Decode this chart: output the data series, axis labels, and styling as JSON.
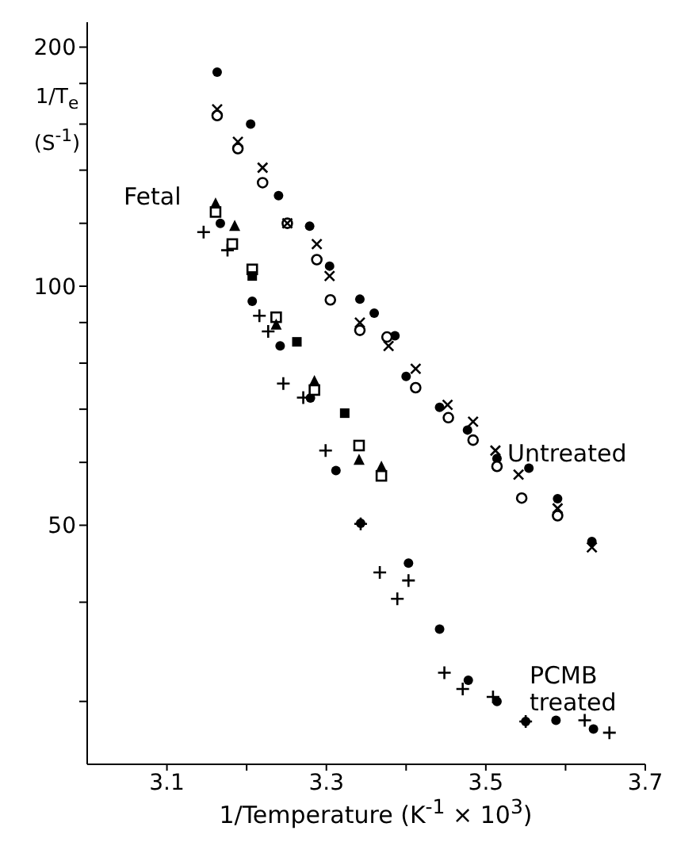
{
  "chart_data": {
    "type": "scatter",
    "xlabel": "1/Temperature (K$^{-1}$ × 10$^{3}$)",
    "ylabel": "1/T$_{e}$ (S$^{-1}$)",
    "log": "y",
    "xlim": [
      3.0,
      3.7
    ],
    "xticks": [
      3.1,
      {
        "value": 3.2,
        "label": null
      },
      3.3,
      {
        "value": 3.4,
        "label": null
      },
      3.5,
      {
        "value": 3.6,
        "label": null
      },
      3.7
    ],
    "ylim": [
      25,
      215
    ],
    "yticks": [
      {
        "value": 30,
        "label": null
      },
      {
        "value": 40,
        "label": null
      },
      50,
      {
        "value": 60,
        "label": null
      },
      {
        "value": 70,
        "label": null
      },
      {
        "value": 80,
        "label": null
      },
      {
        "value": 90,
        "label": null
      },
      100,
      {
        "value": 120,
        "label": null
      },
      {
        "value": 140,
        "label": null
      },
      {
        "value": 160,
        "label": null
      },
      {
        "value": 180,
        "label": null
      },
      200
    ],
    "annotations": [
      "Fetal",
      "Untreated",
      "PCMB treated"
    ],
    "series": [
      {
        "color": "#000000",
        "marker": "circle",
        "x": [
          3.163,
          3.205,
          3.24,
          3.167,
          3.279,
          3.304,
          3.207,
          3.342,
          3.36,
          3.386,
          3.4,
          3.442,
          3.477,
          3.514,
          3.554,
          3.59,
          3.633,
          3.242,
          3.28,
          3.312,
          3.343,
          3.403,
          3.442,
          3.478,
          3.514,
          3.55,
          3.588,
          3.635
        ],
        "values": [
          186,
          160,
          130,
          120,
          119,
          106,
          95.7,
          96.3,
          92.5,
          86.6,
          77,
          70.4,
          65.9,
          60.7,
          59,
          54,
          47.7,
          84.1,
          72.3,
          58.6,
          50.3,
          44.8,
          37,
          31.9,
          30,
          28.3,
          28.4,
          27.7
        ]
      },
      {
        "color": "#000000",
        "marker": "circle-open",
        "x": [
          3.163,
          3.189,
          3.22,
          3.251,
          3.288,
          3.305,
          3.342,
          3.376,
          3.412,
          3.453,
          3.484,
          3.514,
          3.545,
          3.59
        ],
        "values": [
          164,
          149,
          135,
          120,
          108,
          96.1,
          88,
          86.3,
          74.5,
          68.3,
          64,
          59.3,
          54.1,
          51.4
        ]
      },
      {
        "color": "#000000",
        "marker": "cross",
        "x": [
          3.163,
          3.189,
          3.22,
          3.251,
          3.288,
          3.304,
          3.342,
          3.378,
          3.412,
          3.452,
          3.484,
          3.512,
          3.541,
          3.59,
          3.633
        ],
        "values": [
          167,
          152,
          141,
          120,
          113,
          103,
          90,
          84.1,
          78.7,
          70.9,
          67.5,
          62.1,
          57.9,
          52.5,
          46.9
        ]
      },
      {
        "color": "#000000",
        "marker": "plus",
        "x": [
          3.146,
          3.176,
          3.216,
          3.227,
          3.246,
          3.271,
          3.299,
          3.343,
          3.367,
          3.403,
          3.389,
          3.448,
          3.471,
          3.509,
          3.55,
          3.624,
          3.655
        ],
        "values": [
          117,
          111,
          91.8,
          87.7,
          75.4,
          72.4,
          62.1,
          50.2,
          43.6,
          42.6,
          40.4,
          32.6,
          31.1,
          30.4,
          28.3,
          28.4,
          27.4
        ]
      },
      {
        "color": "#000000",
        "marker": "square-open",
        "x": [
          3.161,
          3.182,
          3.207,
          3.237,
          3.285,
          3.341,
          3.369
        ],
        "values": [
          124,
          113,
          105,
          91.4,
          74,
          63,
          57.7
        ]
      },
      {
        "color": "#000000",
        "marker": "square",
        "x": [
          3.207,
          3.263,
          3.323
        ],
        "values": [
          103,
          85.1,
          69.2
        ]
      },
      {
        "color": "#000000",
        "marker": "triangle",
        "x": [
          3.161,
          3.185,
          3.237,
          3.285,
          3.341,
          3.369
        ],
        "values": [
          127,
          119,
          89.4,
          75.9,
          60.4,
          59.2
        ]
      }
    ]
  }
}
